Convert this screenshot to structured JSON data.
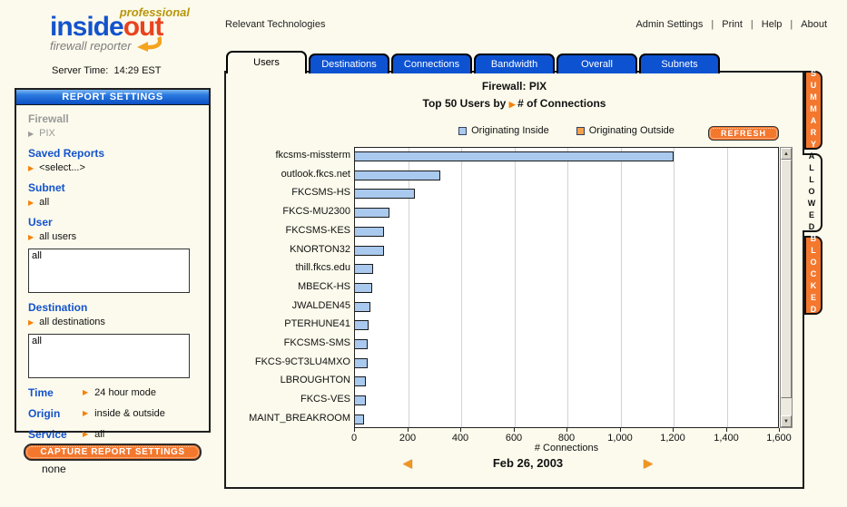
{
  "header": {
    "logo": {
      "professional": "professional",
      "inside": "inside",
      "out": "out",
      "tagline": "firewall reporter"
    },
    "server_time_label": "Server Time:",
    "server_time_value": "14:29 EST",
    "site_name": "Relevant Technologies",
    "links": [
      "Admin Settings",
      "Print",
      "Help",
      "About"
    ]
  },
  "sidebar": {
    "title": "REPORT SETTINGS",
    "firewall": {
      "label": "Firewall",
      "value": "PIX"
    },
    "saved_reports": {
      "label": "Saved Reports",
      "value": "<select...>"
    },
    "subnet": {
      "label": "Subnet",
      "value": "all"
    },
    "user": {
      "label": "User",
      "value": "all users",
      "textarea": "all"
    },
    "destination": {
      "label": "Destination",
      "value": "all destinations",
      "textarea": "all"
    },
    "time": {
      "label": "Time",
      "value": "24 hour mode"
    },
    "origin": {
      "label": "Origin",
      "value": "inside & outside"
    },
    "service": {
      "label": "Service",
      "value": "all"
    },
    "capture_button": "CAPTURE REPORT SETTINGS",
    "status": "none"
  },
  "tabs": {
    "items": [
      "Users",
      "Destinations",
      "Connections",
      "Bandwidth",
      "Overall",
      "Subnets"
    ],
    "active": "Users"
  },
  "side_tabs": {
    "items": [
      "SUMMARY",
      "ALLOWED",
      "BLOCKED"
    ],
    "active": "ALLOWED"
  },
  "report": {
    "title": "Firewall: PIX",
    "subtitle_prefix": "Top 50 Users by",
    "subtitle_suffix": "# of Connections",
    "refresh_button": "REFRESH",
    "date": "Feb 26, 2003",
    "legend": [
      {
        "label": "Originating Inside",
        "color": "#A9C9EE"
      },
      {
        "label": "Originating Outside",
        "color": "#F5A04C"
      }
    ]
  },
  "chart_data": {
    "type": "bar",
    "orientation": "horizontal",
    "title": "Top 50 Users by # of Connections",
    "xlabel": "# Connections",
    "xlim": [
      0,
      1600
    ],
    "xticks": [
      "0",
      "200",
      "400",
      "600",
      "800",
      "1,000",
      "1,200",
      "1,400",
      "1,600"
    ],
    "grid": true,
    "legend_position": "top",
    "categories": [
      "fkcsms-missterm",
      "outlook.fkcs.net",
      "FKCSMS-HS",
      "FKCS-MU2300",
      "FKCSMS-KES",
      "KNORTON32",
      "thill.fkcs.edu",
      "MBECK-HS",
      "JWALDEN45",
      "PTERHUNE41",
      "FKCSMS-SMS",
      "FKCS-9CT3LU4MXO",
      "LBROUGHTON",
      "FKCS-VES",
      "MAINT_BREAKROOM"
    ],
    "series": [
      {
        "name": "Originating Inside",
        "color": "#A9C9EE",
        "values": [
          1200,
          320,
          225,
          130,
          110,
          110,
          68,
          65,
          58,
          50,
          47,
          47,
          40,
          40,
          33
        ]
      },
      {
        "name": "Originating Outside",
        "color": "#F5A04C",
        "values": [
          0,
          0,
          0,
          0,
          0,
          0,
          0,
          0,
          0,
          0,
          0,
          0,
          0,
          0,
          0
        ]
      }
    ]
  }
}
